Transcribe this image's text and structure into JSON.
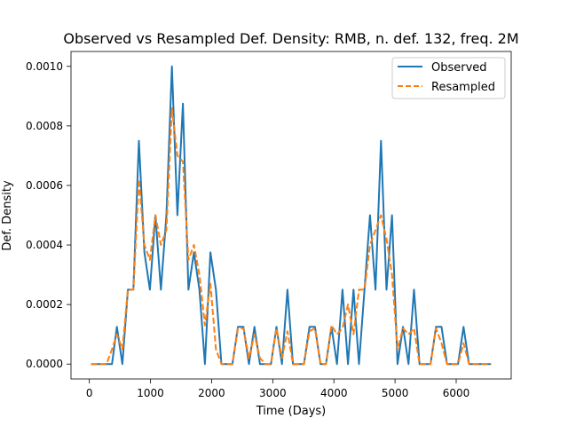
{
  "chart_data": {
    "type": "line",
    "title": "Observed vs Resampled Def. Density: RMB, n. def. 132, freq. 2M",
    "xlabel": "Time (Days)",
    "ylabel": "Def. Density",
    "xlim": [
      -300,
      6900
    ],
    "ylim": [
      -5e-05,
      0.00105
    ],
    "xticks": [
      0,
      1000,
      2000,
      3000,
      4000,
      5000,
      6000
    ],
    "xtick_labels": [
      "0",
      "1000",
      "2000",
      "3000",
      "4000",
      "5000",
      "6000"
    ],
    "yticks": [
      0,
      0.0002,
      0.0004,
      0.0006,
      0.0008,
      0.001
    ],
    "ytick_labels": [
      "0.0000",
      "0.0002",
      "0.0004",
      "0.0006",
      "0.0008",
      "0.0010"
    ],
    "grid": false,
    "legend_position": "top-right",
    "series": [
      {
        "name": "Observed",
        "color": "#1f77b4",
        "dash": "solid",
        "x": [
          30,
          120,
          200,
          280,
          370,
          450,
          540,
          630,
          720,
          810,
          900,
          990,
          1080,
          1170,
          1260,
          1350,
          1440,
          1530,
          1620,
          1710,
          1800,
          1890,
          1980,
          2070,
          2160,
          2250,
          2340,
          2430,
          2520,
          2610,
          2700,
          2790,
          2880,
          2970,
          3060,
          3150,
          3240,
          3330,
          3420,
          3510,
          3600,
          3690,
          3780,
          3870,
          3960,
          4050,
          4140,
          4230,
          4320,
          4410,
          4500,
          4590,
          4680,
          4770,
          4860,
          4950,
          5040,
          5130,
          5220,
          5310,
          5400,
          5490,
          5580,
          5670,
          5760,
          5850,
          5940,
          6030,
          6120,
          6210,
          6300,
          6390,
          6570
        ],
        "y": [
          0,
          0,
          0,
          0,
          0,
          0.000125,
          0,
          0.00025,
          0.00025,
          0.00075,
          0.000375,
          0.00025,
          0.0005,
          0.00025,
          0.0005,
          0.001,
          0.0005,
          0.000875,
          0.00025,
          0.000375,
          0.00025,
          0,
          0.000375,
          0.00025,
          0,
          0,
          0,
          0.000125,
          0.000125,
          0,
          0.000125,
          0,
          0,
          0,
          0.000125,
          0,
          0.00025,
          0,
          0,
          0,
          0.000125,
          0.000125,
          0,
          0,
          0.000125,
          0,
          0.00025,
          0,
          0.00025,
          0,
          0.00025,
          0.0005,
          0.00025,
          0.00075,
          0.00025,
          0.0005,
          0,
          0.000125,
          0,
          0.00025,
          0,
          0,
          0,
          0.000125,
          0.000125,
          0,
          0,
          0,
          0.000125,
          0,
          0,
          0,
          0
        ]
      },
      {
        "name": "Resampled",
        "color": "#ff7f0e",
        "dash": "dashed",
        "x": [
          30,
          120,
          200,
          280,
          370,
          450,
          540,
          630,
          720,
          810,
          900,
          990,
          1080,
          1170,
          1260,
          1350,
          1440,
          1530,
          1620,
          1710,
          1800,
          1890,
          1980,
          2070,
          2160,
          2250,
          2340,
          2430,
          2520,
          2610,
          2700,
          2790,
          2880,
          2970,
          3060,
          3150,
          3240,
          3330,
          3420,
          3510,
          3600,
          3690,
          3780,
          3870,
          3960,
          4050,
          4140,
          4230,
          4320,
          4410,
          4500,
          4590,
          4680,
          4770,
          4860,
          4950,
          5040,
          5130,
          5220,
          5310,
          5400,
          5490,
          5580,
          5670,
          5760,
          5850,
          5940,
          6030,
          6120,
          6210,
          6300,
          6390,
          6570
        ],
        "y": [
          0,
          0,
          0,
          0,
          5e-05,
          0.0001,
          5e-05,
          0.00025,
          0.00025,
          0.00062,
          0.0004,
          0.00035,
          0.0005,
          0.0004,
          0.00045,
          0.00086,
          0.0007,
          0.00068,
          0.00035,
          0.0004,
          0.0003,
          0.00013,
          0.00027,
          5e-05,
          0,
          0,
          0,
          0.00012,
          0.00012,
          2e-05,
          0.0001,
          2e-05,
          0,
          0,
          0.00012,
          2e-05,
          0.00011,
          0,
          0,
          0,
          0.00011,
          0.00012,
          0,
          0,
          0.00013,
          0.0001,
          0.00012,
          0.0002,
          0.0001,
          0.00025,
          0.00025,
          0.0004,
          0.00045,
          0.0005,
          0.00042,
          0.0003,
          5e-05,
          0.00012,
          0.0001,
          0.00012,
          0,
          0,
          0,
          0.00012,
          7e-05,
          0,
          0,
          0,
          7e-05,
          0,
          0,
          0,
          0
        ]
      }
    ]
  }
}
